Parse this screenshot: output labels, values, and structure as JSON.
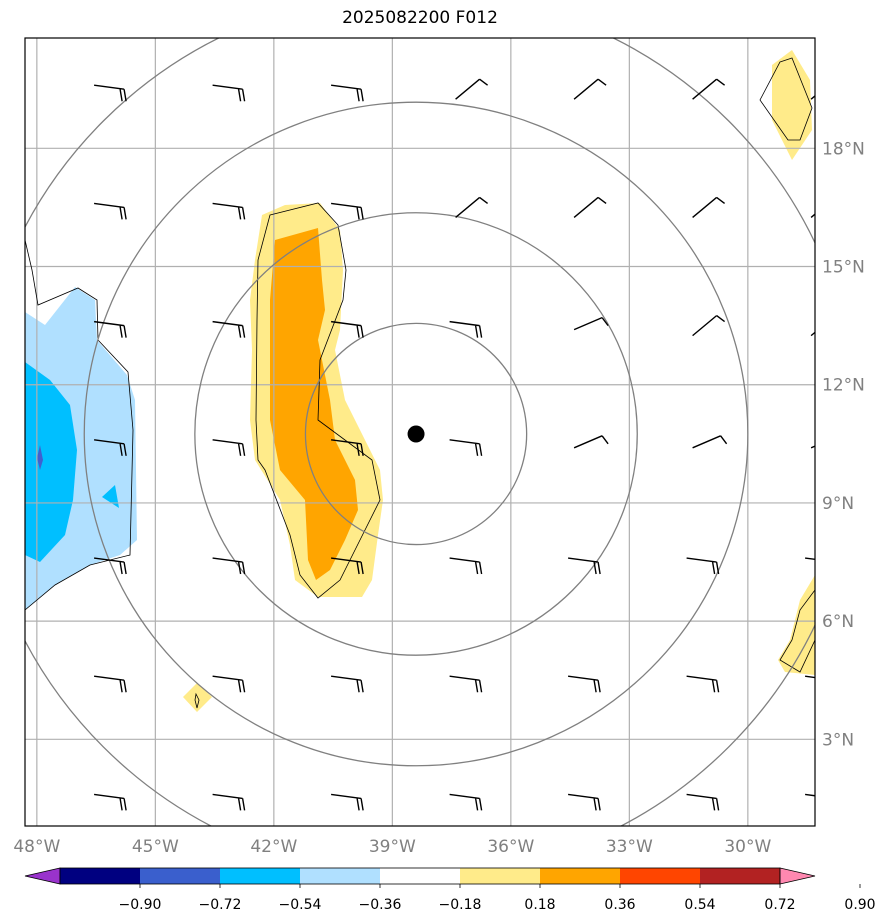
{
  "title": "2025082200 F012",
  "map": {
    "lon_range": [
      -48.3,
      -28.3
    ],
    "lat_range": [
      0.8,
      20.8
    ],
    "x_ticks": [
      {
        "value": -48,
        "label": "48°W"
      },
      {
        "value": -45,
        "label": "45°W"
      },
      {
        "value": -42,
        "label": "42°W"
      },
      {
        "value": -39,
        "label": "39°W"
      },
      {
        "value": -36,
        "label": "36°W"
      },
      {
        "value": -33,
        "label": "33°W"
      },
      {
        "value": -30,
        "label": "30°W"
      }
    ],
    "y_ticks": [
      {
        "value": 3,
        "label": "3°N"
      },
      {
        "value": 6,
        "label": "6°N"
      },
      {
        "value": 9,
        "label": "9°N"
      },
      {
        "value": 12,
        "label": "12°N"
      },
      {
        "value": 15,
        "label": "15°N"
      },
      {
        "value": 18,
        "label": "18°N"
      }
    ],
    "gridlines": true,
    "center_marker": {
      "lon": -38.4,
      "lat": 10.75
    },
    "range_rings_deg": [
      2.8,
      5.6,
      8.4,
      11.2
    ],
    "colors": {
      "grid": "#b0b0b0",
      "ring": "#808080",
      "pos1": "#ffeb8a",
      "pos2": "#ffa500",
      "neg1": "#b0e0ff",
      "neg2": "#00bfff",
      "neg3": "#4060d0"
    }
  },
  "colorbar": {
    "ticks": [
      "−0.90",
      "−0.72",
      "−0.54",
      "−0.36",
      "−0.18",
      "0.18",
      "0.36",
      "0.54",
      "0.72",
      "0.90"
    ],
    "colors": [
      "#9933cc",
      "#000080",
      "#3a5fcd",
      "#00bfff",
      "#b0e0ff",
      "#ffffff",
      "#ffeb8a",
      "#ffa500",
      "#ff4500",
      "#b22222",
      "#ff88b0"
    ]
  }
}
